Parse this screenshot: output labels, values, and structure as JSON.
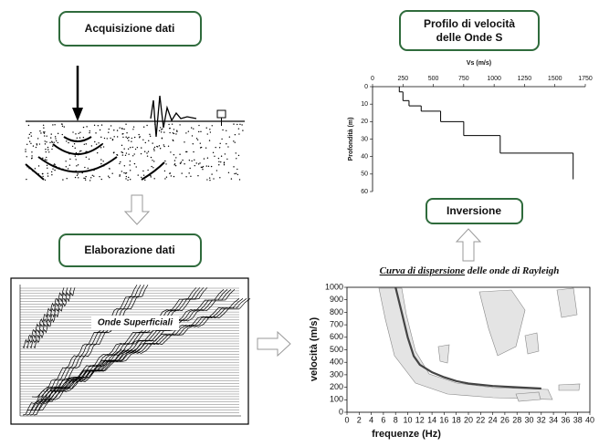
{
  "boxes": {
    "acquisition": "Acquisizione dati",
    "processing": "Elaborazione dati",
    "profile": [
      "Profilo di velocità",
      "delle Onde S"
    ],
    "inversion": "Inversione"
  },
  "seismogram_label": "Onde Superficiali",
  "profile_chart": {
    "type": "step",
    "xlabel": "Vs (m/s)",
    "ylabel": "Profondità (m)",
    "xlim": [
      0,
      1750
    ],
    "xticks": [
      0,
      250,
      500,
      750,
      1000,
      1250,
      1500,
      1750
    ],
    "ylim": [
      0,
      60
    ],
    "y_inverted": true,
    "yticks": [
      0,
      10,
      20,
      30,
      40,
      50,
      60
    ],
    "depth": [
      0,
      3,
      8,
      11,
      14,
      20,
      28,
      38,
      53
    ],
    "vs": [
      220,
      250,
      300,
      400,
      560,
      750,
      1050,
      1650
    ],
    "color": "#000000"
  },
  "dispersion_chart": {
    "type": "line",
    "title": [
      "Curva di dispersione",
      "delle onde di Rayleigh"
    ],
    "xlabel": "frequenze (Hz)",
    "ylabel": "velocità (m/s)",
    "xlim": [
      0,
      40
    ],
    "xticks": [
      0,
      2,
      4,
      6,
      8,
      10,
      12,
      14,
      16,
      18,
      20,
      22,
      24,
      26,
      28,
      30,
      32,
      34,
      36,
      38,
      40
    ],
    "ylim": [
      0,
      1000
    ],
    "yticks": [
      0,
      100,
      200,
      300,
      400,
      500,
      600,
      700,
      800,
      900,
      1000
    ],
    "x": [
      8,
      9,
      10,
      11,
      12,
      14,
      16,
      18,
      20,
      24,
      28,
      32
    ],
    "values": [
      1000,
      800,
      600,
      450,
      380,
      320,
      280,
      250,
      230,
      210,
      200,
      190
    ],
    "color": "#444444"
  }
}
